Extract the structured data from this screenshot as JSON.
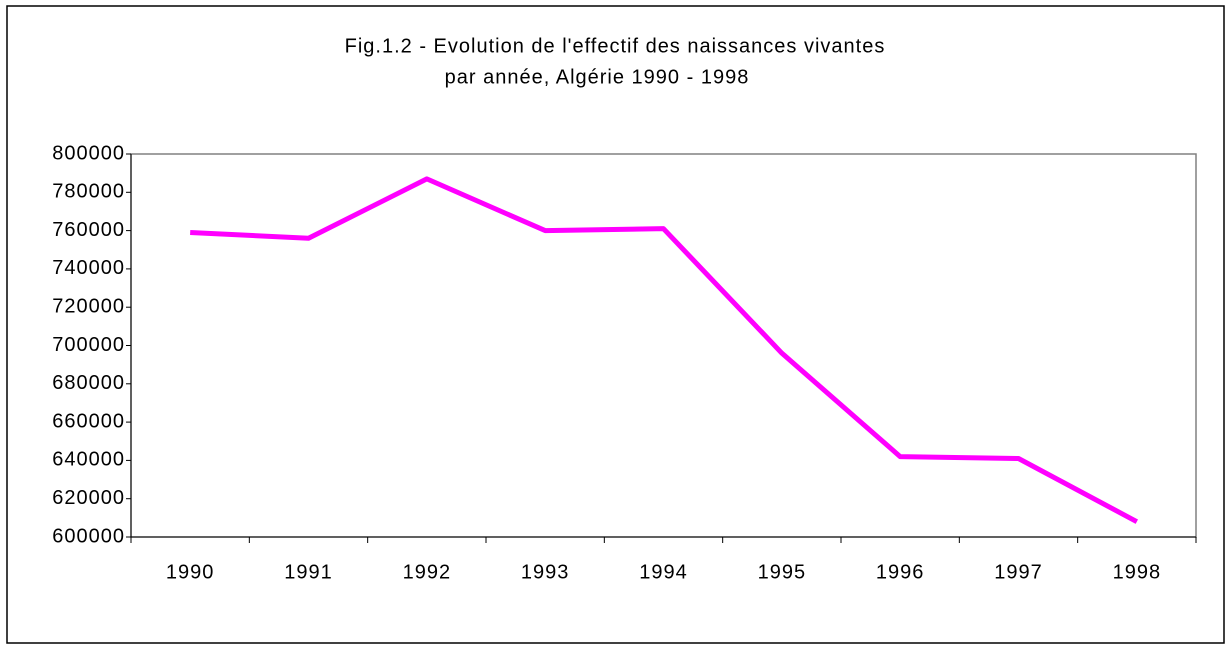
{
  "chart_data": {
    "type": "line",
    "title": [
      "Fig.1.2 - Evolution de l'effectif des naissances vivantes",
      "par année,  Algérie 1990 - 1998"
    ],
    "categories": [
      "1990",
      "1991",
      "1992",
      "1993",
      "1994",
      "1995",
      "1996",
      "1997",
      "1998"
    ],
    "series": [
      {
        "color": "#ff00ff",
        "values": [
          759000,
          756000,
          787000,
          760000,
          761000,
          696000,
          642000,
          641000,
          608000
        ]
      }
    ],
    "ylim": [
      600000,
      800000
    ],
    "yticks": [
      600000,
      620000,
      640000,
      660000,
      680000,
      700000,
      720000,
      740000,
      760000,
      780000,
      800000
    ],
    "grid": false
  }
}
